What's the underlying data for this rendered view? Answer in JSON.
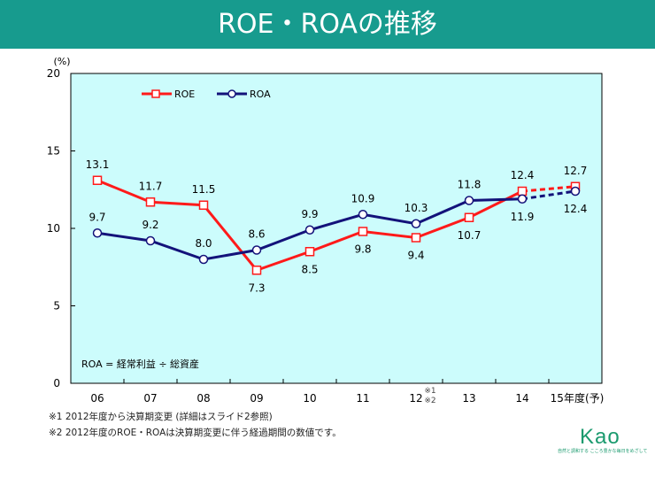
{
  "title": "ROE・ROAの推移",
  "chart_data": {
    "type": "line",
    "title": "ROE・ROAの推移",
    "ylabel": "(%)",
    "ylim": [
      0,
      20
    ],
    "yticks": [
      "0",
      "5",
      "10",
      "15",
      "20"
    ],
    "categories": [
      "06",
      "07",
      "08",
      "09",
      "10",
      "11",
      "12",
      "13",
      "14",
      "15年度(予)"
    ],
    "category_note": {
      "index": 6,
      "text1": "※1",
      "text2": "※2"
    },
    "grid": false,
    "legend_position": "top-left",
    "series": [
      {
        "name": "ROE",
        "color": "#ff1a1a",
        "marker": "square",
        "values": [
          13.1,
          11.7,
          11.5,
          7.3,
          8.5,
          9.8,
          9.4,
          10.7,
          12.4,
          12.7
        ],
        "labels": [
          "13.1",
          "11.7",
          "11.5",
          "7.3",
          "8.5",
          "9.8",
          "9.4",
          "10.7",
          "12.4",
          "12.7"
        ],
        "label_side": [
          "above",
          "above",
          "above",
          "below",
          "below",
          "below",
          "below",
          "below",
          "above",
          "above"
        ],
        "forecast_from_index": 8
      },
      {
        "name": "ROA",
        "color": "#13127a",
        "marker": "circle",
        "values": [
          9.7,
          9.2,
          8.0,
          8.6,
          9.9,
          10.9,
          10.3,
          11.8,
          11.9,
          12.4
        ],
        "labels": [
          "9.7",
          "9.2",
          "8.0",
          "8.6",
          "9.9",
          "10.9",
          "10.3",
          "11.8",
          "11.9",
          "12.4"
        ],
        "label_side": [
          "above",
          "above",
          "above",
          "above",
          "above",
          "above",
          "above",
          "above",
          "below",
          "below"
        ],
        "forecast_from_index": 8
      }
    ],
    "annotation": "ROA = 経常利益 ÷ 総資産",
    "background": "#ccfcfc"
  },
  "footnotes": [
    "※1 2012年度から決算期変更 (詳細はスライド2参照)",
    "※2 2012年度のROE・ROAは決算期変更に伴う経過期間の数値です。"
  ],
  "logo": {
    "text": "Kao",
    "tagline": "自然と調和する こころ豊かな毎日をめざして"
  }
}
